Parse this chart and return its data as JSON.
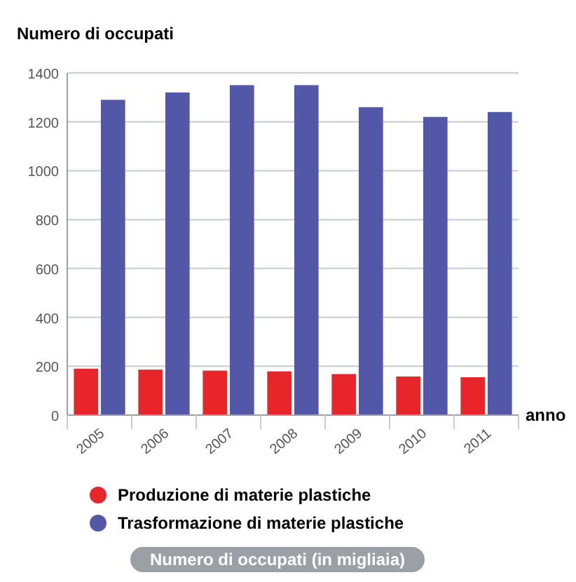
{
  "chart_data": {
    "type": "bar",
    "title": "Numero di occupati",
    "xlabel": "anno",
    "categories": [
      "2005",
      "2006",
      "2007",
      "2008",
      "2009",
      "2010",
      "2011"
    ],
    "series": [
      {
        "name": "Produzione di materie plastiche",
        "color": "#e8262a",
        "values": [
          190,
          186,
          182,
          179,
          168,
          158,
          155
        ]
      },
      {
        "name": "Trasformazione di materie plastiche",
        "color": "#5257a8",
        "values": [
          1290,
          1320,
          1350,
          1350,
          1260,
          1220,
          1240
        ]
      }
    ],
    "ylim": [
      0,
      1400
    ],
    "yticks": [
      0,
      200,
      400,
      600,
      800,
      1000,
      1200,
      1400
    ],
    "grid": "y",
    "legend": "bottom",
    "annotations": [
      "Numero di occupati (in migliaia)"
    ]
  }
}
